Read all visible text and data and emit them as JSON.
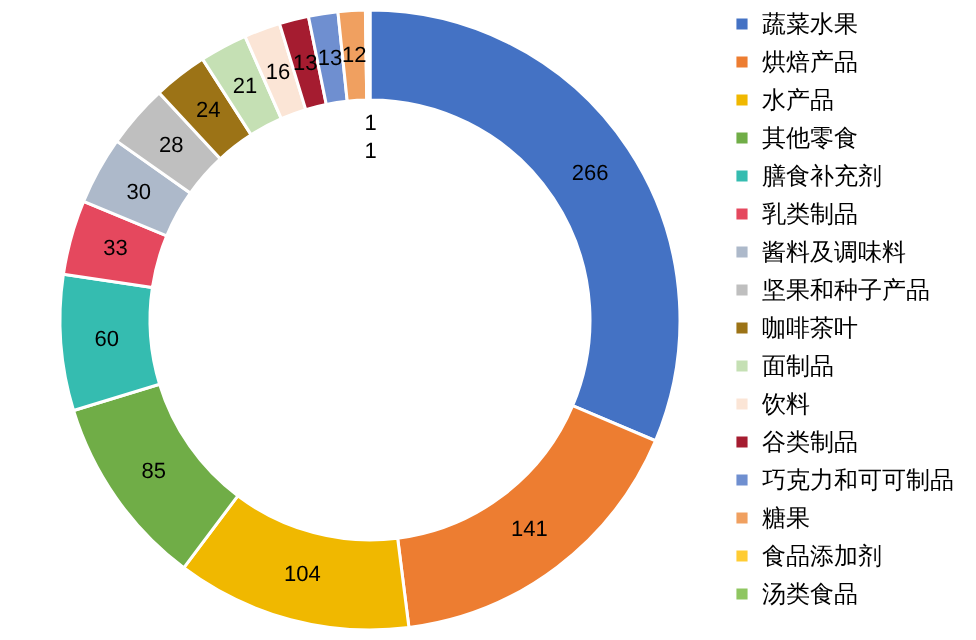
{
  "chart_data": {
    "type": "donut",
    "categories": [
      "蔬菜水果",
      "烘焙产品",
      "水产品",
      "其他零食",
      "膳食补充剂",
      "乳类制品",
      "酱料及调味料",
      "坚果和种子产品",
      "咖啡茶叶",
      "面制品",
      "饮料",
      "谷类制品",
      "巧克力和可可制品",
      "糖果",
      "食品添加剂",
      "汤类食品"
    ],
    "values": [
      266,
      141,
      104,
      85,
      60,
      33,
      30,
      28,
      24,
      21,
      16,
      13,
      13,
      12,
      1,
      1
    ],
    "colors": [
      "#4472c4",
      "#ed7d31",
      "#f0b800",
      "#70ad47",
      "#35bcb0",
      "#e5485e",
      "#adb9ca",
      "#bfbfbf",
      "#9c7316",
      "#c5e0b4",
      "#fbe5d6",
      "#a51c30",
      "#6f8fd0",
      "#f0a060",
      "#ffcc33",
      "#8fc661"
    ],
    "data_labels": true,
    "legend": "right"
  }
}
